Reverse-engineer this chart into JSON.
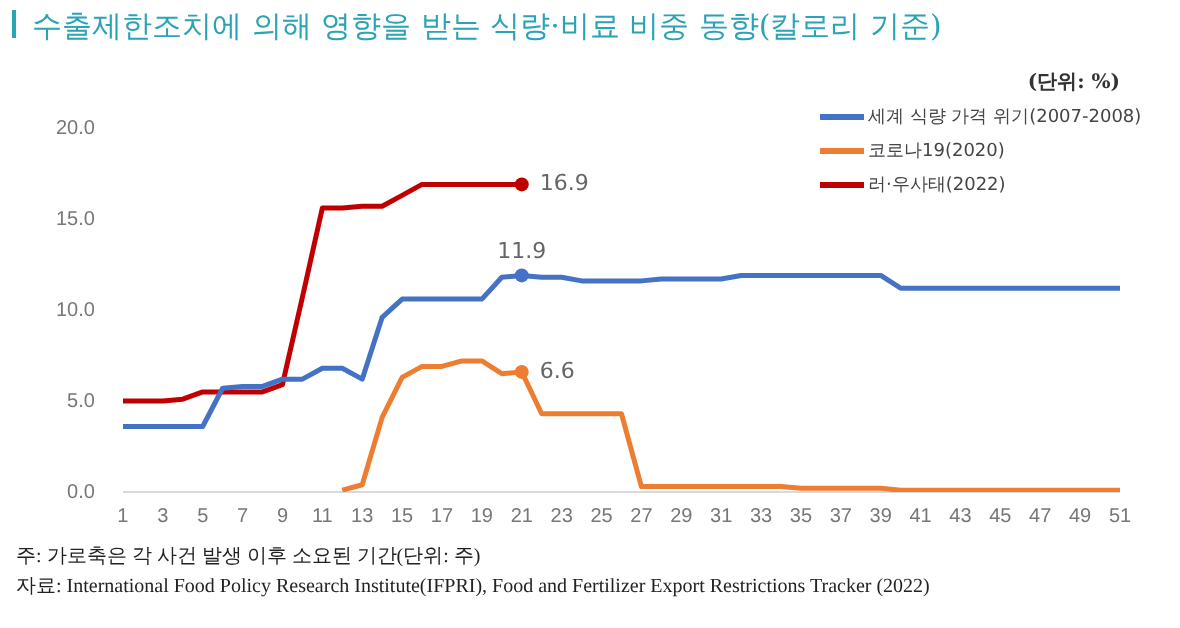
{
  "chart_data": {
    "type": "line",
    "title": "수출제한조치에 의해 영향을 받는 식량·비료 비중 동향(칼로리 기준)",
    "subtitle": "(단위: %)",
    "x": [
      1,
      2,
      3,
      4,
      5,
      6,
      7,
      8,
      9,
      10,
      11,
      12,
      13,
      14,
      15,
      16,
      17,
      18,
      19,
      20,
      21,
      22,
      23,
      24,
      25,
      26,
      27,
      28,
      29,
      30,
      31,
      32,
      33,
      34,
      35,
      36,
      37,
      38,
      39,
      40,
      41,
      42,
      43,
      44,
      45,
      46,
      47,
      48,
      49,
      50,
      51
    ],
    "xlim": [
      1,
      51
    ],
    "xticks": [
      1,
      3,
      5,
      7,
      9,
      11,
      13,
      15,
      17,
      19,
      21,
      23,
      25,
      27,
      29,
      31,
      33,
      35,
      37,
      39,
      41,
      43,
      45,
      47,
      49,
      51
    ],
    "series": [
      {
        "name": "세계 식량 가격 위기(2007-2008)",
        "color": "#4472c4",
        "values": [
          3.6,
          3.6,
          3.6,
          3.6,
          3.6,
          5.7,
          5.8,
          5.8,
          6.2,
          6.2,
          6.8,
          6.8,
          6.2,
          9.6,
          10.6,
          10.6,
          10.6,
          10.6,
          10.6,
          11.8,
          11.9,
          11.8,
          11.8,
          11.6,
          11.6,
          11.6,
          11.6,
          11.7,
          11.7,
          11.7,
          11.7,
          11.9,
          11.9,
          11.9,
          11.9,
          11.9,
          11.9,
          11.9,
          11.9,
          11.2,
          11.2,
          11.2,
          11.2,
          11.2,
          11.2,
          11.2,
          11.2,
          11.2,
          11.2,
          11.2,
          11.2
        ],
        "value_labels": [
          null,
          null,
          null,
          null,
          null,
          null,
          null,
          null,
          null,
          null,
          null,
          null,
          null,
          null,
          null,
          null,
          null,
          null,
          null,
          null,
          "11.9",
          null,
          null,
          null,
          null,
          null,
          null,
          null,
          null,
          null,
          null,
          null,
          null,
          null,
          null,
          null,
          null,
          null,
          null,
          null,
          null,
          null,
          null,
          null,
          null,
          null,
          null,
          null,
          null,
          null,
          null
        ]
      },
      {
        "name": "코로나19(2020)",
        "color": "#ed7d31",
        "values": [
          null,
          null,
          null,
          null,
          null,
          null,
          null,
          null,
          null,
          null,
          null,
          0.1,
          0.4,
          4.1,
          6.3,
          6.9,
          6.9,
          7.2,
          7.2,
          6.5,
          6.6,
          4.3,
          4.3,
          4.3,
          4.3,
          4.3,
          0.3,
          0.3,
          0.3,
          0.3,
          0.3,
          0.3,
          0.3,
          0.3,
          0.2,
          0.2,
          0.2,
          0.2,
          0.2,
          0.1,
          0.1,
          0.1,
          0.1,
          0.1,
          0.1,
          0.1,
          0.1,
          0.1,
          0.1,
          0.1,
          0.1
        ],
        "value_labels": [
          null,
          null,
          null,
          null,
          null,
          null,
          null,
          null,
          null,
          null,
          null,
          null,
          null,
          null,
          null,
          null,
          null,
          null,
          null,
          null,
          "6.6",
          null,
          null,
          null,
          null,
          null,
          null,
          null,
          null,
          null,
          null,
          null,
          null,
          null,
          null,
          null,
          null,
          null,
          null,
          null,
          null,
          null,
          null,
          null,
          null,
          null,
          null,
          null,
          null,
          null,
          null
        ]
      },
      {
        "name": "러·우사태(2022)",
        "color": "#c00000",
        "values": [
          5.0,
          5.0,
          5.0,
          5.1,
          5.5,
          5.5,
          5.5,
          5.5,
          5.9,
          10.7,
          15.6,
          15.6,
          15.7,
          15.7,
          16.3,
          16.9,
          16.9,
          16.9,
          16.9,
          16.9,
          16.9,
          null,
          null,
          null,
          null,
          null,
          null,
          null,
          null,
          null,
          null,
          null,
          null,
          null,
          null,
          null,
          null,
          null,
          null,
          null,
          null,
          null,
          null,
          null,
          null,
          null,
          null,
          null,
          null,
          null,
          null
        ],
        "value_labels": [
          null,
          null,
          null,
          null,
          null,
          null,
          null,
          null,
          null,
          null,
          null,
          null,
          null,
          null,
          null,
          null,
          null,
          null,
          null,
          null,
          "16.9",
          null,
          null,
          null,
          null,
          null,
          null,
          null,
          null,
          null,
          null,
          null,
          null,
          null,
          null,
          null,
          null,
          null,
          null,
          null,
          null,
          null,
          null,
          null,
          null,
          null,
          null,
          null,
          null,
          null,
          null
        ]
      }
    ],
    "ylim": [
      0,
      20
    ],
    "yticks": [
      {
        "value": 0,
        "label": "0.0"
      },
      {
        "value": 5,
        "label": "5.0"
      },
      {
        "value": 10,
        "label": "10.0"
      },
      {
        "value": 15,
        "label": "15.0"
      },
      {
        "value": 20,
        "label": "20.0"
      }
    ],
    "legend": "top right",
    "marker": "none",
    "annotations": [
      "주: 가로축은 각 사건 발생 이후 소요된 기간(단위: 주)",
      "자료: International Food Policy Research Institute(IFPRI), Food and Fertilizer Export Restrictions Tracker (2022)"
    ]
  }
}
